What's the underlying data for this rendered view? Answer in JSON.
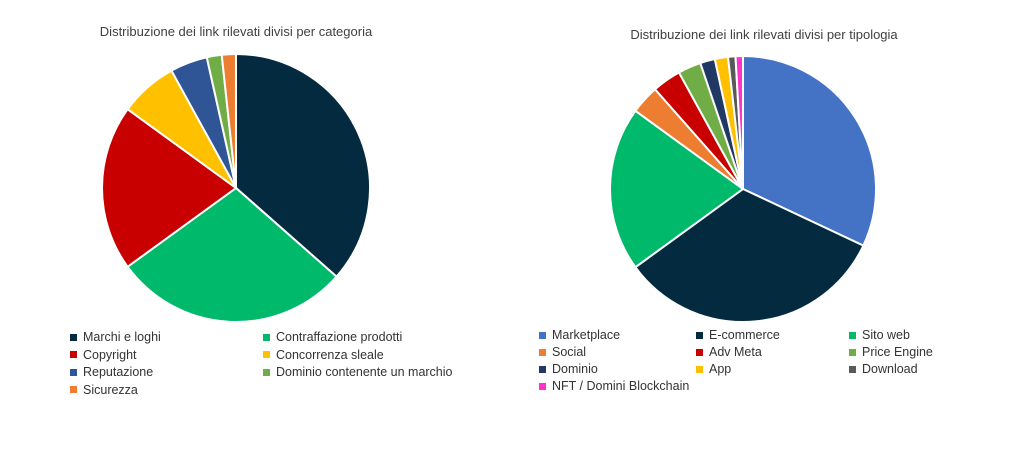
{
  "chart_data": [
    {
      "type": "pie",
      "title": "Distribuzione dei link rilevati divisi per categoria",
      "slices": [
        {
          "label": "Marchi e loghi",
          "value": 36.5,
          "color": "#042a40"
        },
        {
          "label": "Contraffazione prodotti",
          "value": 28.5,
          "color": "#00b96b"
        },
        {
          "label": "Copyright",
          "value": 20.0,
          "color": "#c80000"
        },
        {
          "label": "Concorrenza sleale",
          "value": 7.0,
          "color": "#ffc000"
        },
        {
          "label": "Reputazione",
          "value": 4.5,
          "color": "#2f5597"
        },
        {
          "label": "Dominio contenente un marchio",
          "value": 1.8,
          "color": "#70ad47"
        },
        {
          "label": "Sicurezza",
          "value": 1.7,
          "color": "#ed7d31"
        }
      ],
      "legend_position": "bottom"
    },
    {
      "type": "pie",
      "title": "Distribuzione dei link rilevati divisi per tipologia",
      "slices": [
        {
          "label": "Marketplace",
          "value": 32.0,
          "color": "#4472c4"
        },
        {
          "label": "E-commerce",
          "value": 33.0,
          "color": "#042a40"
        },
        {
          "label": "Sito web",
          "value": 20.0,
          "color": "#00b96b"
        },
        {
          "label": "Social",
          "value": 3.5,
          "color": "#ed7d31"
        },
        {
          "label": "Adv Meta",
          "value": 3.5,
          "color": "#c80000"
        },
        {
          "label": "Price Engine",
          "value": 2.8,
          "color": "#70ad47"
        },
        {
          "label": "Dominio",
          "value": 1.8,
          "color": "#203864"
        },
        {
          "label": "App",
          "value": 1.6,
          "color": "#ffc000"
        },
        {
          "label": "Download",
          "value": 0.9,
          "color": "#595959"
        },
        {
          "label": "NFT / Domini Blockchain",
          "value": 0.9,
          "color": "#ff33cc"
        }
      ],
      "legend_position": "bottom"
    }
  ]
}
